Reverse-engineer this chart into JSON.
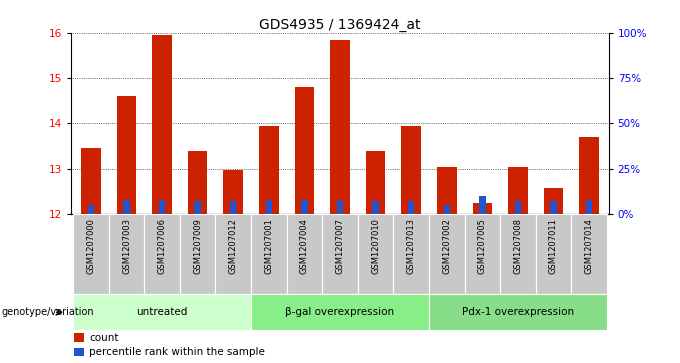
{
  "title": "GDS4935 / 1369424_at",
  "samples": [
    "GSM1207000",
    "GSM1207003",
    "GSM1207006",
    "GSM1207009",
    "GSM1207012",
    "GSM1207001",
    "GSM1207004",
    "GSM1207007",
    "GSM1207010",
    "GSM1207013",
    "GSM1207002",
    "GSM1207005",
    "GSM1207008",
    "GSM1207011",
    "GSM1207014"
  ],
  "count_values": [
    13.45,
    14.6,
    15.95,
    13.4,
    12.97,
    13.95,
    14.8,
    15.83,
    13.4,
    13.95,
    13.05,
    12.25,
    13.05,
    12.57,
    13.7
  ],
  "percentile_values": [
    5,
    8,
    8,
    7,
    7,
    8,
    8,
    8,
    7,
    7,
    5,
    10,
    7,
    7,
    8
  ],
  "groups": [
    {
      "label": "untreated",
      "start": 0,
      "end": 5
    },
    {
      "label": "β-gal overexpression",
      "start": 5,
      "end": 10
    },
    {
      "label": "Pdx-1 overexpression",
      "start": 10,
      "end": 15
    }
  ],
  "group_colors": [
    "#ccffcc",
    "#88ee88",
    "#88dd88"
  ],
  "ylim_left": [
    12,
    16
  ],
  "ylim_right": [
    0,
    100
  ],
  "yticks_left": [
    12,
    13,
    14,
    15,
    16
  ],
  "yticks_right": [
    0,
    25,
    50,
    75,
    100
  ],
  "ytick_labels_right": [
    "0%",
    "25%",
    "50%",
    "75%",
    "100%"
  ],
  "bar_color_red": "#cc2200",
  "bar_color_blue": "#2255cc",
  "sample_bg_color": "#c8c8c8"
}
